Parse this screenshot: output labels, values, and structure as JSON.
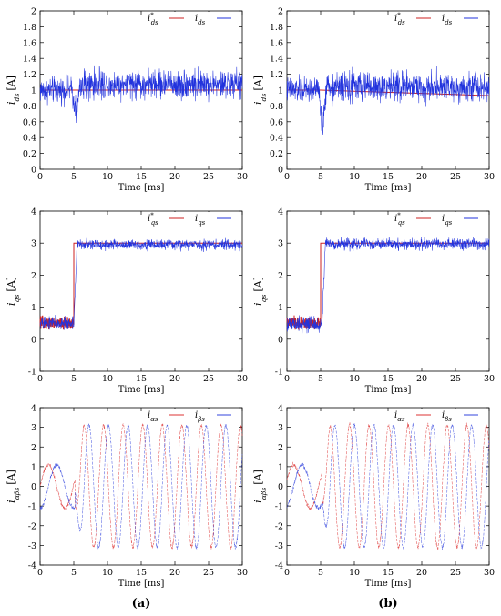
{
  "figure": {
    "panel_labels": [
      "(a)",
      "(b)"
    ]
  },
  "colors": {
    "reference": "#cc2222",
    "measured": "#2233dd",
    "alpha": "#dd3333",
    "beta": "#3344dd"
  },
  "chart_data": [
    {
      "id": "a-ids",
      "type": "line",
      "column": "a",
      "row": 0,
      "ylabel": "i_ds [A]",
      "xlabel": "Time [ms]",
      "xlim": [
        0,
        30
      ],
      "ylim": [
        0,
        2
      ],
      "xticks": [
        0,
        5,
        10,
        15,
        20,
        25,
        30
      ],
      "yticks": [
        0,
        0.2,
        0.4,
        0.6,
        0.8,
        1,
        1.2,
        1.4,
        1.6,
        1.8,
        2
      ],
      "ytick_labels": [
        "0",
        "0.2",
        "0.4",
        "0.6",
        "0.8",
        "1",
        "1.2",
        "1.4",
        "1.6",
        "1.8",
        "2"
      ],
      "legend": [
        "i*ds",
        "ids"
      ],
      "legend_position": "top-right",
      "series": [
        {
          "name": "i*ds",
          "kind": "constant",
          "value": 1.0,
          "end": 1.0
        },
        {
          "name": "ids",
          "kind": "noisy_dc",
          "mean_before": 1.0,
          "mean_after": 1.07,
          "noise": 0.09,
          "dip_at": 5.3,
          "dip_to": 0.45
        }
      ]
    },
    {
      "id": "b-ids",
      "type": "line",
      "column": "b",
      "row": 0,
      "ylabel": "i_ds [A]",
      "xlabel": "Time [ms]",
      "xlim": [
        0,
        30
      ],
      "ylim": [
        0,
        2
      ],
      "xticks": [
        0,
        5,
        10,
        15,
        20,
        25,
        30
      ],
      "yticks": [
        0,
        0.2,
        0.4,
        0.6,
        0.8,
        1,
        1.2,
        1.4,
        1.6,
        1.8,
        2
      ],
      "ytick_labels": [
        "0",
        "0.2",
        "0.4",
        "0.6",
        "0.8",
        "1",
        "1.2",
        "1.4",
        "1.6",
        "1.8",
        "2"
      ],
      "legend": [
        "i*ds",
        "ids"
      ],
      "legend_position": "top-right",
      "series": [
        {
          "name": "i*ds",
          "kind": "ramp",
          "value": 1.0,
          "end": 0.93
        },
        {
          "name": "ids",
          "kind": "noisy_dc",
          "mean_before": 1.0,
          "mean_after": 1.04,
          "noise": 0.09,
          "dip_at": 5.3,
          "dip_to": 0.32
        }
      ]
    },
    {
      "id": "a-iqs",
      "type": "line",
      "column": "a",
      "row": 1,
      "ylabel": "i_qs [A]",
      "xlabel": "Time [ms]",
      "xlim": [
        0,
        30
      ],
      "ylim": [
        -1,
        4
      ],
      "xticks": [
        0,
        5,
        10,
        15,
        20,
        25,
        30
      ],
      "yticks": [
        -1,
        0,
        1,
        2,
        3,
        4
      ],
      "ytick_labels": [
        "-1",
        "0",
        "1",
        "2",
        "3",
        "4"
      ],
      "legend": [
        "i*qs",
        "iqs"
      ],
      "legend_position": "top-right",
      "series": [
        {
          "name": "i*qs",
          "kind": "step",
          "before": 0.5,
          "after": 3.0,
          "step_at": 5.0
        },
        {
          "name": "iqs",
          "kind": "noisy_step",
          "before": 0.5,
          "after": 2.95,
          "step_at": 5.0,
          "noise": 0.08
        }
      ]
    },
    {
      "id": "b-iqs",
      "type": "line",
      "column": "b",
      "row": 1,
      "ylabel": "i_qs [A]",
      "xlabel": "Time [ms]",
      "xlim": [
        0,
        30
      ],
      "ylim": [
        -1,
        4
      ],
      "xticks": [
        0,
        5,
        10,
        15,
        20,
        25,
        30
      ],
      "yticks": [
        -1,
        0,
        1,
        2,
        3,
        4
      ],
      "ytick_labels": [
        "-1",
        "0",
        "1",
        "2",
        "3",
        "4"
      ],
      "legend": [
        "i*qs",
        "iqs"
      ],
      "legend_position": "top-right",
      "series": [
        {
          "name": "i*qs",
          "kind": "step",
          "before": 0.5,
          "after": 3.0,
          "step_at": 5.0
        },
        {
          "name": "iqs",
          "kind": "noisy_step",
          "before": 0.45,
          "after": 2.97,
          "step_at": 5.2,
          "noise": 0.09
        }
      ]
    },
    {
      "id": "a-iab",
      "type": "line",
      "column": "a",
      "row": 2,
      "ylabel": "i_αβs [A]",
      "xlabel": "Time [ms]",
      "xlim": [
        0,
        30
      ],
      "ylim": [
        -4,
        4
      ],
      "xticks": [
        0,
        5,
        10,
        15,
        20,
        25,
        30
      ],
      "yticks": [
        -4,
        -3,
        -2,
        -1,
        0,
        1,
        2,
        3,
        4
      ],
      "ytick_labels": [
        "-4",
        "-3",
        "-2",
        "-1",
        "0",
        "1",
        "2",
        "3",
        "4"
      ],
      "legend": [
        "iαs",
        "iβs"
      ],
      "legend_position": "top-right",
      "series": [
        {
          "name": "iαs",
          "kind": "sine",
          "amp_before": 1.1,
          "amp_after": 3.1,
          "step_at": 5.2,
          "period_ms": 2.9,
          "phase": 0.0
        },
        {
          "name": "iβs",
          "kind": "sine",
          "amp_before": 1.1,
          "amp_after": 3.1,
          "step_at": 5.2,
          "period_ms": 2.9,
          "phase": -1.5708
        }
      ]
    },
    {
      "id": "b-iab",
      "type": "line",
      "column": "b",
      "row": 2,
      "ylabel": "i_αβs [A]",
      "xlabel": "Time [ms]",
      "xlim": [
        0,
        30
      ],
      "ylim": [
        -4,
        4
      ],
      "xticks": [
        0,
        5,
        10,
        15,
        20,
        25,
        30
      ],
      "yticks": [
        -4,
        -3,
        -2,
        -1,
        0,
        1,
        2,
        3,
        4
      ],
      "ytick_labels": [
        "-4",
        "-3",
        "-2",
        "-1",
        "0",
        "1",
        "2",
        "3",
        "4"
      ],
      "legend": [
        "iαs",
        "iβs"
      ],
      "legend_position": "top-right",
      "series": [
        {
          "name": "iαs",
          "kind": "sine",
          "amp_before": 1.1,
          "amp_after": 3.1,
          "step_at": 5.2,
          "period_ms": 2.9,
          "phase": 0.3
        },
        {
          "name": "iβs",
          "kind": "sine",
          "amp_before": 1.1,
          "amp_after": 3.1,
          "step_at": 5.2,
          "period_ms": 2.9,
          "phase": -1.27
        }
      ]
    }
  ]
}
